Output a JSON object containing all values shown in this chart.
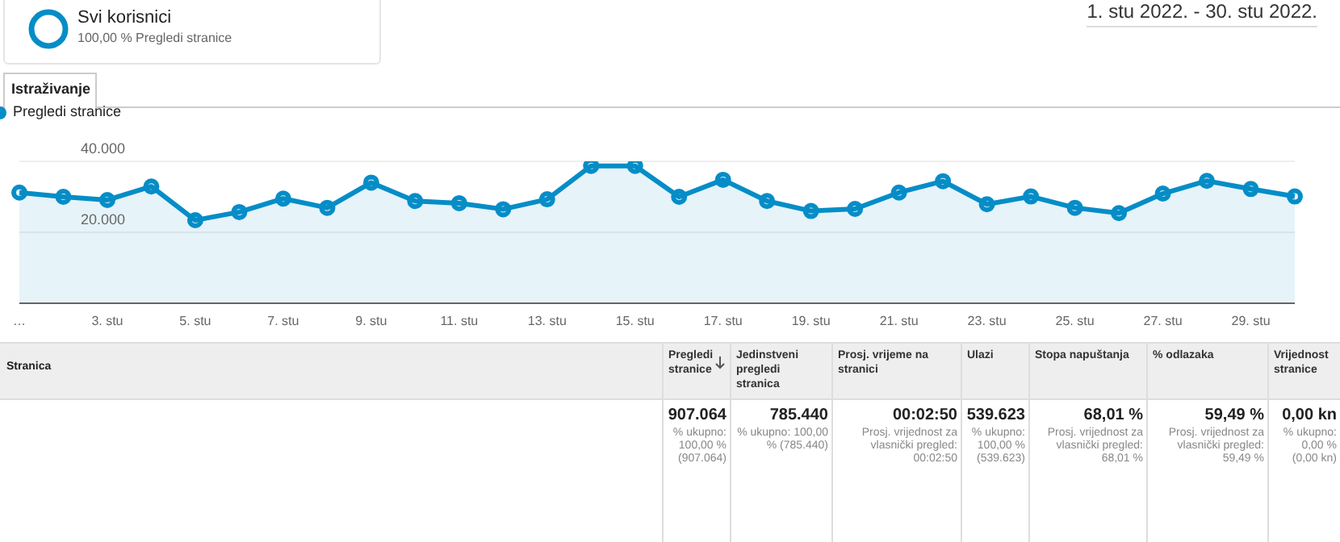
{
  "chart_data": {
    "type": "area",
    "categories": [
      "…",
      null,
      "3. stu",
      null,
      "5. stu",
      null,
      "7. stu",
      null,
      "9. stu",
      null,
      "11. stu",
      null,
      "13. stu",
      null,
      "15. stu",
      null,
      "17. stu",
      null,
      "19. stu",
      null,
      "21. stu",
      null,
      "23. stu",
      null,
      "25. stu",
      null,
      "27. stu",
      null,
      "29. stu",
      null
    ],
    "series": [
      {
        "name": "Pregledi stranice",
        "color": "#058dc7",
        "values": [
          31200,
          30000,
          29100,
          32900,
          23400,
          25700,
          29500,
          26900,
          34000,
          28800,
          28200,
          26500,
          29300,
          38700,
          38700,
          30000,
          34800,
          28800,
          26000,
          26600,
          31200,
          34400,
          27900,
          30100,
          26900,
          25400,
          30900,
          34500,
          32200,
          30100
        ]
      }
    ],
    "ylim": [
      0,
      40000
    ],
    "yticks": [
      {
        "value": 0,
        "label": null
      },
      {
        "value": 20000,
        "label": "20.000"
      },
      {
        "value": 40000,
        "label": "40.000"
      }
    ],
    "grid": "y",
    "legend": "top left",
    "marker": "circle",
    "annotations": [
      "Svi korisnici",
      "100,00 % Pregledi stranice",
      "1. stu 2022. - 30. stu 2022.",
      "Istraživanje",
      "Stranica",
      "Pregledi stranice",
      "Jedinstveni pregledi stranica",
      "Prosj. vrijeme na stranici",
      "Ulazi",
      "Stopa napuštanja",
      "% odlazaka",
      "Vrijednost stranice",
      "907.064",
      "785.440",
      "00:02:50",
      "539.623",
      "68,01 %",
      "59,49 %",
      "0,00 kn",
      "% ukupno: 100,00 % (907.064)",
      "% ukupno: 100,00 % (785.440)",
      "Prosj. vrijednost za vlasnički pregled: 00:02:50",
      "% ukupno: 100,00 % (539.623)",
      "Prosj. vrijednost za vlasnički pregled: 68,01 %",
      "Prosj. vrijednost za vlasnički pregled: 59,49 %",
      "% ukupno: 0,00 % (0,00 kn)"
    ]
  }
}
